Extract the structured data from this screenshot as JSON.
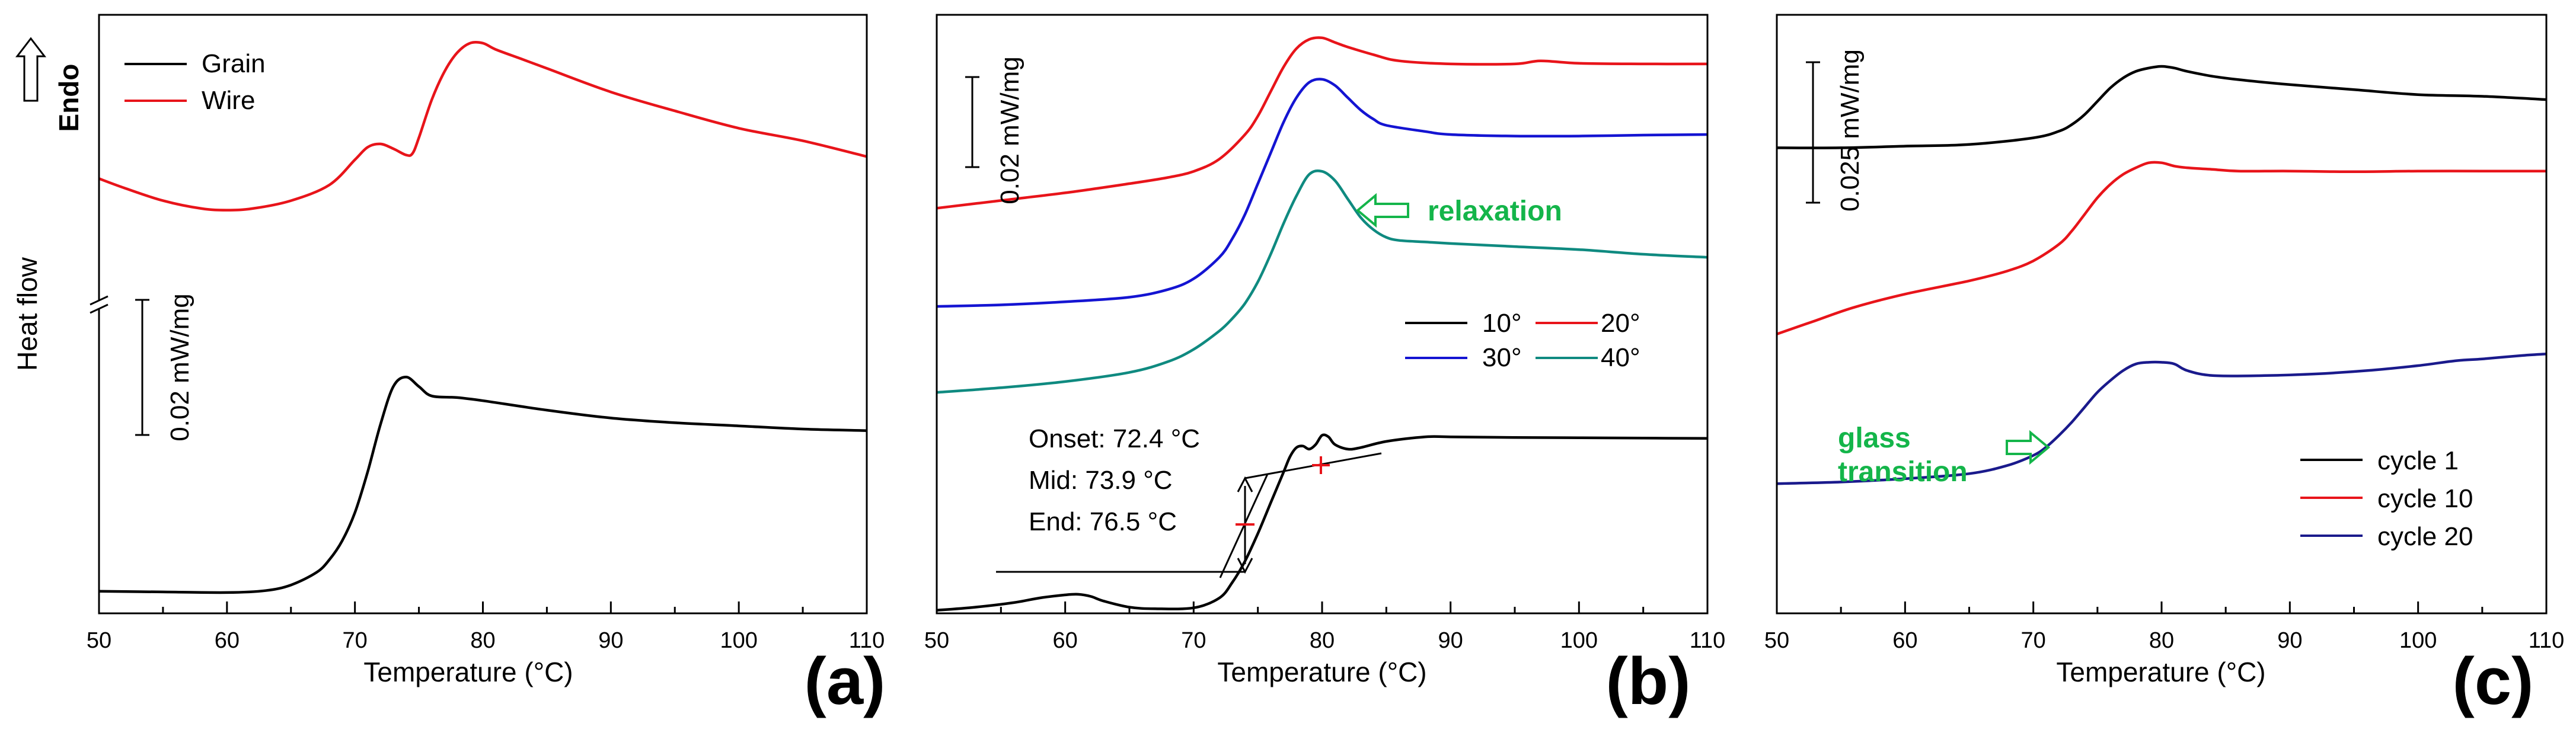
{
  "chart_data": [
    {
      "type": "line",
      "panel_label": "(a)",
      "xlabel": "Temperature (°C)",
      "ylabel": "Heat flow",
      "endo_label": "Endo",
      "xlim": [
        50,
        110
      ],
      "xticks": [
        50,
        60,
        70,
        80,
        90,
        100,
        110
      ],
      "yticks": [],
      "scale_bar": "0.02 mW/mg",
      "legend": [
        "Grain",
        "Wire"
      ],
      "series": [
        {
          "name": "Grain",
          "color": "#000000",
          "x": [
            50,
            55,
            60,
            63,
            65,
            67,
            68,
            69,
            70,
            71,
            72,
            73,
            74,
            75,
            76,
            78,
            80,
            85,
            90,
            95,
            100,
            105,
            110
          ],
          "y": [
            0.07,
            0.068,
            0.066,
            0.072,
            0.09,
            0.13,
            0.17,
            0.23,
            0.32,
            0.45,
            0.6,
            0.72,
            0.75,
            0.72,
            0.69,
            0.685,
            0.675,
            0.645,
            0.62,
            0.605,
            0.595,
            0.585,
            0.58
          ]
        },
        {
          "name": "Wire",
          "color": "#e8141a",
          "x": [
            50,
            52,
            55,
            58,
            60,
            62,
            65,
            68,
            70,
            71,
            72,
            73,
            74,
            74.5,
            75,
            76,
            77,
            78,
            79,
            80,
            81,
            83,
            85,
            90,
            95,
            100,
            105,
            110
          ],
          "y": [
            1.38,
            1.35,
            1.31,
            1.285,
            1.28,
            1.285,
            1.31,
            1.36,
            1.44,
            1.48,
            1.49,
            1.475,
            1.455,
            1.46,
            1.51,
            1.63,
            1.72,
            1.78,
            1.81,
            1.81,
            1.79,
            1.76,
            1.73,
            1.655,
            1.595,
            1.54,
            1.5,
            1.45
          ]
        }
      ]
    },
    {
      "type": "line",
      "panel_label": "(b)",
      "xlabel": "Temperature (°C)",
      "xlim": [
        50,
        110
      ],
      "xticks": [
        50,
        60,
        70,
        80,
        90,
        100,
        110
      ],
      "yticks": [],
      "scale_bar": "0.02 mW/mg",
      "relaxation_label": "relaxation",
      "legend": [
        "10°",
        "20°",
        "30°",
        "40°"
      ],
      "annotations": [
        "Onset: 72.4 °C",
        "Mid: 73.9 °C",
        "End: 76.5 °C"
      ],
      "series": [
        {
          "name": "10°",
          "color": "#000000",
          "x": [
            50,
            53,
            56,
            58,
            60,
            61,
            62,
            63,
            65,
            67,
            70,
            72,
            73,
            74,
            75,
            76,
            77,
            77.5,
            78,
            78.5,
            79,
            79.5,
            80,
            80.5,
            81,
            82,
            83,
            85,
            88,
            90,
            95,
            100,
            105,
            110
          ],
          "y": [
            0.01,
            0.02,
            0.035,
            0.05,
            0.06,
            0.062,
            0.055,
            0.04,
            0.02,
            0.015,
            0.018,
            0.05,
            0.1,
            0.17,
            0.26,
            0.36,
            0.46,
            0.51,
            0.54,
            0.545,
            0.535,
            0.55,
            0.58,
            0.575,
            0.55,
            0.535,
            0.54,
            0.56,
            0.575,
            0.575,
            0.573,
            0.572,
            0.571,
            0.57
          ]
        },
        {
          "name": "20°",
          "color": "#e8141a",
          "x": [
            50,
            55,
            60,
            65,
            68,
            70,
            72,
            74,
            75,
            76,
            77,
            78,
            79,
            80,
            81,
            82,
            84,
            86,
            90,
            95,
            97,
            100,
            105,
            110
          ],
          "y": [
            1.32,
            1.345,
            1.37,
            1.4,
            1.42,
            1.44,
            1.48,
            1.56,
            1.62,
            1.7,
            1.78,
            1.84,
            1.87,
            1.875,
            1.86,
            1.845,
            1.82,
            1.8,
            1.79,
            1.79,
            1.8,
            1.792,
            1.79,
            1.79
          ]
        },
        {
          "name": "30°",
          "color": "#1414d2",
          "x": [
            50,
            55,
            60,
            65,
            68,
            70,
            72,
            73,
            74,
            75,
            76,
            77,
            78,
            79,
            80,
            81,
            82,
            83,
            84,
            85,
            88,
            90,
            95,
            100,
            105,
            110
          ],
          "y": [
            1.0,
            1.005,
            1.015,
            1.03,
            1.055,
            1.09,
            1.16,
            1.22,
            1.3,
            1.4,
            1.5,
            1.6,
            1.68,
            1.73,
            1.74,
            1.72,
            1.68,
            1.64,
            1.61,
            1.59,
            1.57,
            1.56,
            1.555,
            1.555,
            1.558,
            1.56
          ]
        },
        {
          "name": "40°",
          "color": "#0f8a80",
          "x": [
            50,
            55,
            60,
            65,
            68,
            70,
            72,
            73,
            74,
            75,
            76,
            77,
            78,
            79,
            80,
            81,
            82,
            83,
            84,
            85,
            86,
            88,
            90,
            95,
            100,
            105,
            110
          ],
          "y": [
            0.72,
            0.735,
            0.755,
            0.785,
            0.82,
            0.86,
            0.92,
            0.96,
            1.01,
            1.08,
            1.17,
            1.27,
            1.36,
            1.43,
            1.44,
            1.41,
            1.35,
            1.29,
            1.25,
            1.225,
            1.215,
            1.21,
            1.205,
            1.195,
            1.185,
            1.17,
            1.16
          ]
        }
      ]
    },
    {
      "type": "line",
      "panel_label": "(c)",
      "xlabel": "Temperature (°C)",
      "xlim": [
        50,
        110
      ],
      "xticks": [
        50,
        60,
        70,
        80,
        90,
        100,
        110
      ],
      "yticks": [],
      "scale_bar": "0.025 mW/mg",
      "glass_label": [
        "glass",
        "transition"
      ],
      "legend": [
        "cycle 1",
        "cycle 10",
        "cycle 20"
      ],
      "series": [
        {
          "name": "cycle 1",
          "color": "#000000",
          "x": [
            50,
            55,
            60,
            65,
            70,
            72,
            73,
            74,
            75,
            76,
            77,
            78,
            79,
            80,
            81,
            82,
            84,
            86,
            90,
            95,
            100,
            105,
            110
          ],
          "y": [
            1.7,
            1.7,
            1.705,
            1.71,
            1.73,
            1.75,
            1.77,
            1.8,
            1.84,
            1.88,
            1.91,
            1.93,
            1.94,
            1.945,
            1.94,
            1.93,
            1.915,
            1.905,
            1.89,
            1.875,
            1.86,
            1.855,
            1.845
          ]
        },
        {
          "name": "cycle 10",
          "color": "#e8141a",
          "x": [
            50,
            53,
            56,
            60,
            65,
            68,
            70,
            72,
            73,
            74,
            75,
            76,
            77,
            78,
            79,
            80,
            81,
            82,
            84,
            86,
            90,
            95,
            100,
            105,
            110
          ],
          "y": [
            1.14,
            1.18,
            1.22,
            1.26,
            1.3,
            1.33,
            1.36,
            1.41,
            1.45,
            1.5,
            1.55,
            1.59,
            1.62,
            1.64,
            1.655,
            1.655,
            1.645,
            1.64,
            1.635,
            1.63,
            1.63,
            1.628,
            1.63,
            1.63,
            1.63
          ]
        },
        {
          "name": "cycle 20",
          "color": "#1a1a8c",
          "x": [
            50,
            55,
            60,
            65,
            68,
            70,
            71,
            72,
            73,
            74,
            75,
            76,
            77,
            78,
            79,
            80,
            81,
            82,
            84,
            88,
            92,
            96,
            100,
            103,
            105,
            108,
            110
          ],
          "y": [
            0.69,
            0.695,
            0.705,
            0.72,
            0.745,
            0.775,
            0.8,
            0.835,
            0.875,
            0.92,
            0.965,
            1.0,
            1.03,
            1.05,
            1.055,
            1.055,
            1.05,
            1.03,
            1.015,
            1.015,
            1.02,
            1.03,
            1.045,
            1.06,
            1.065,
            1.075,
            1.08
          ]
        }
      ]
    }
  ]
}
